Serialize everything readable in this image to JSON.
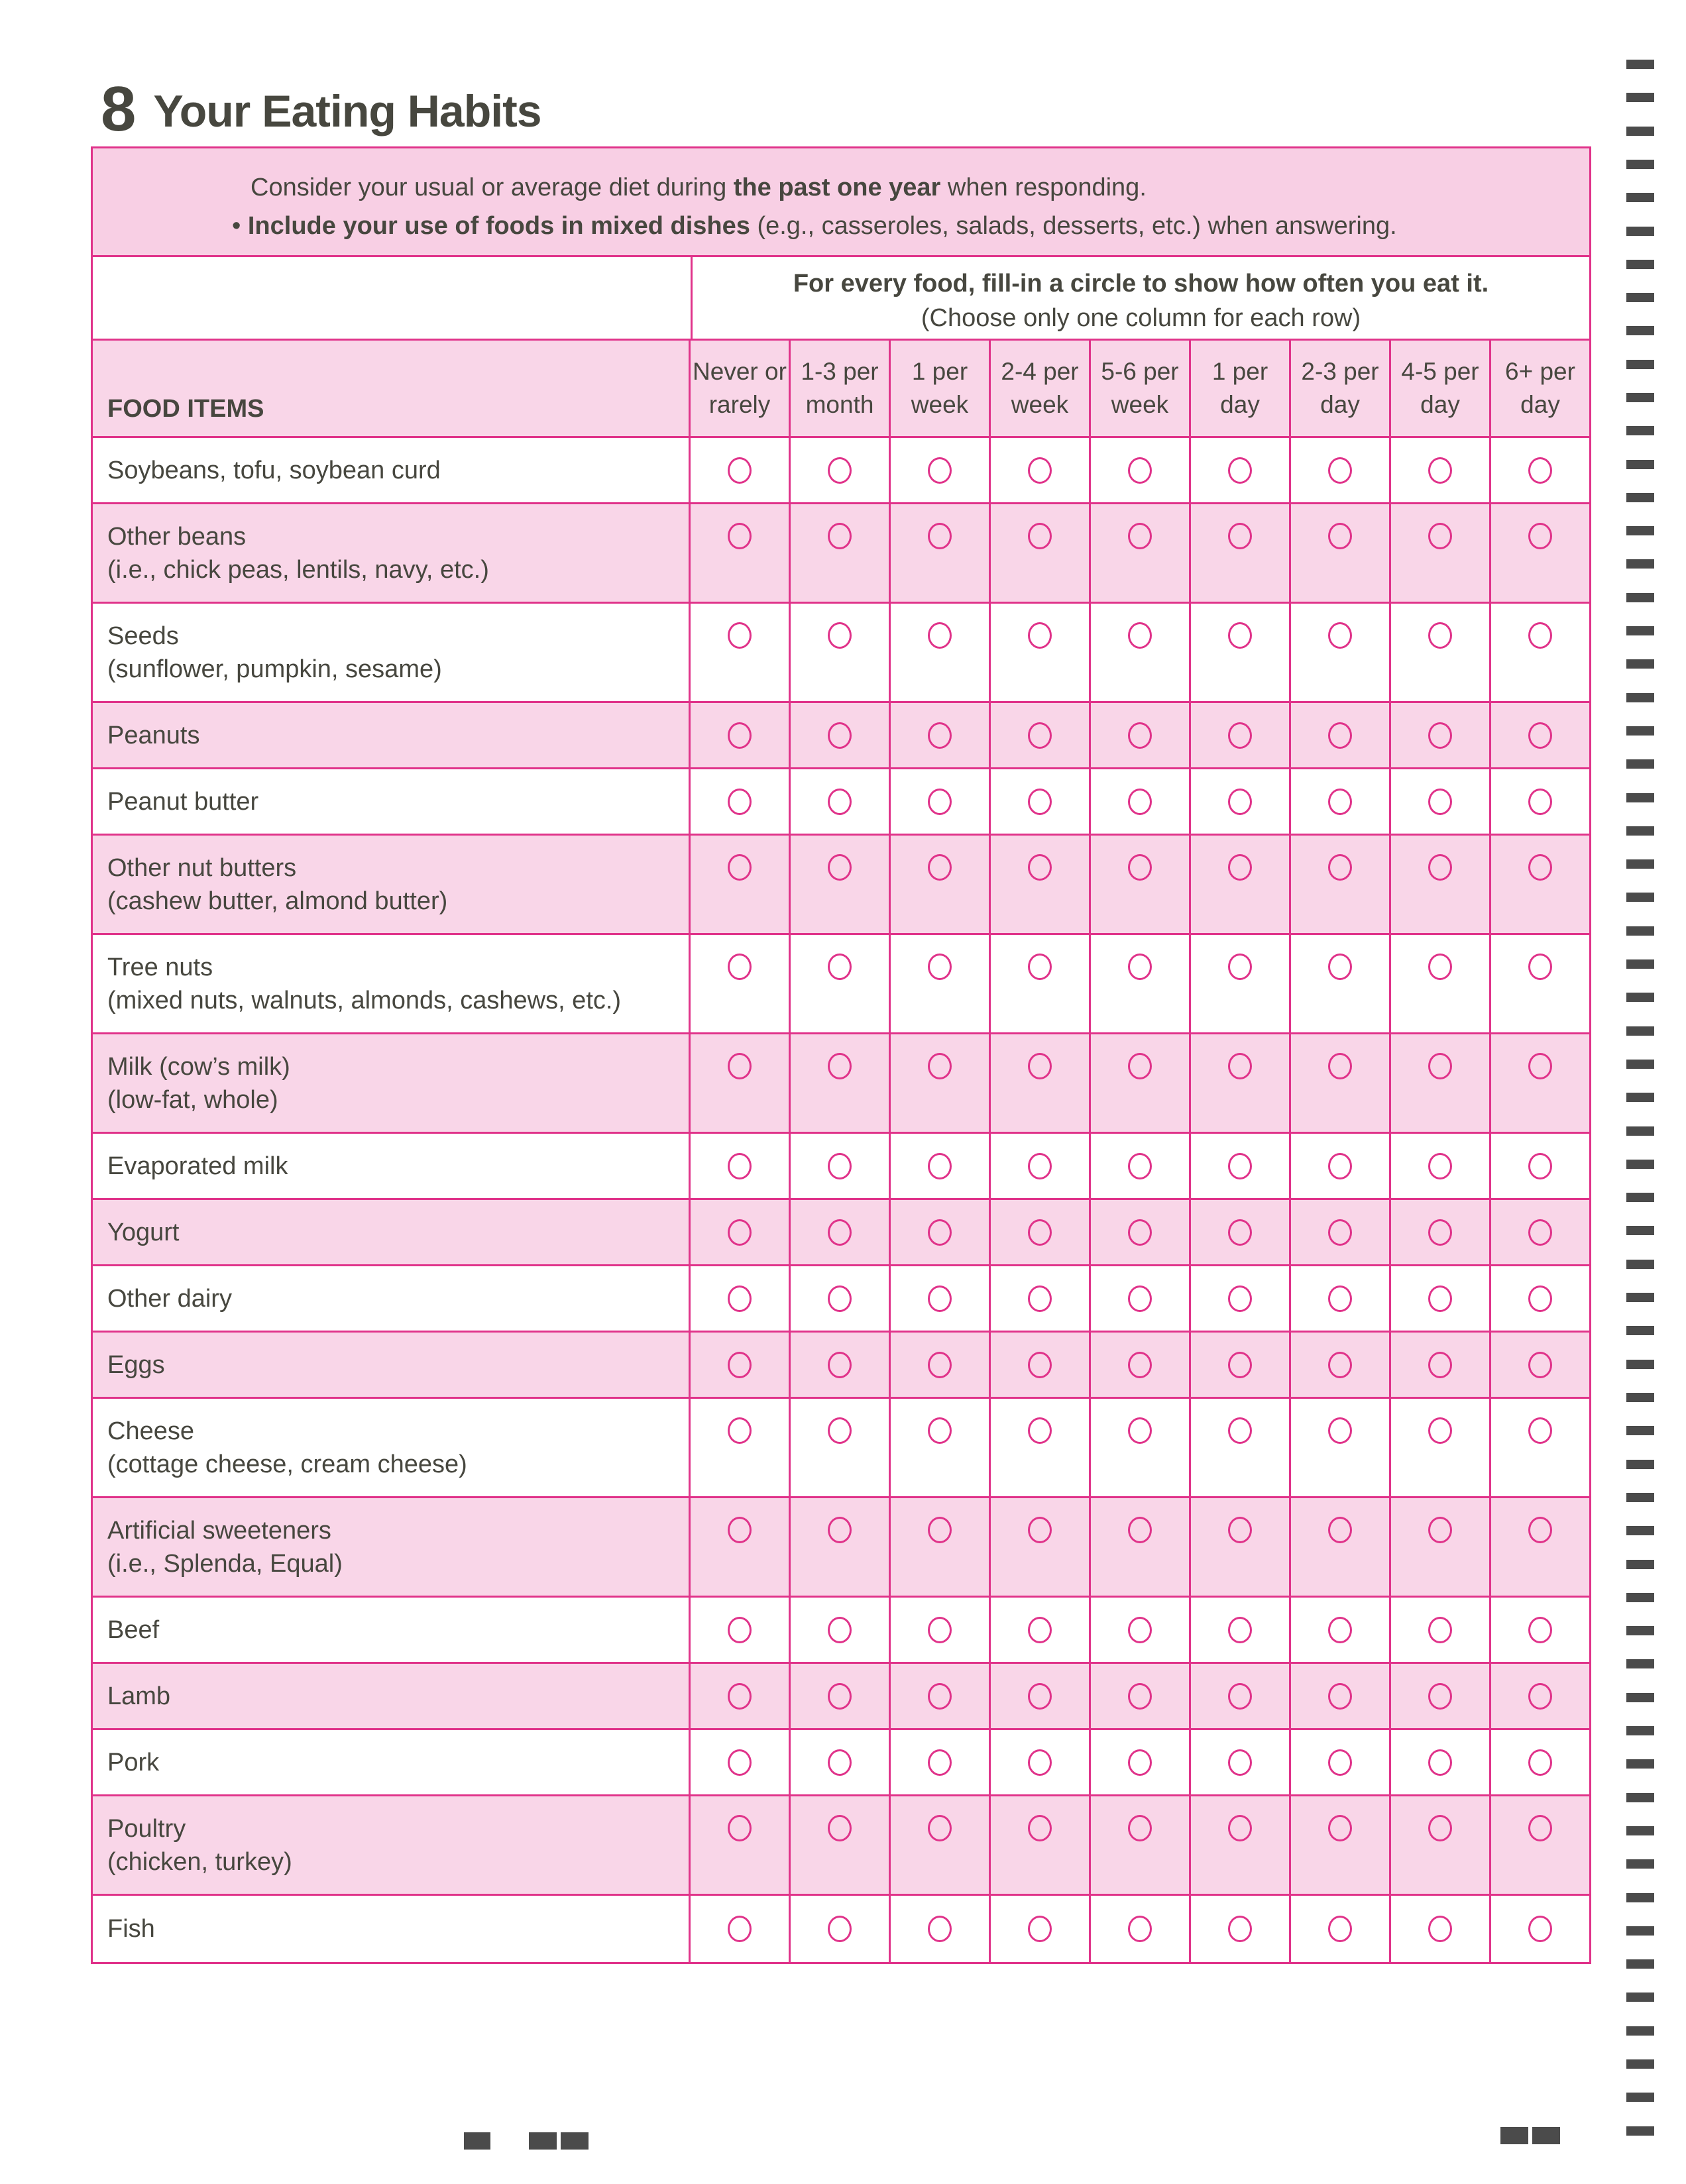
{
  "section": {
    "number": "8",
    "title": "Your Eating Habits"
  },
  "intro": {
    "line1_prefix": "Consider your usual or average diet during ",
    "line1_bold": "the past one year",
    "line1_suffix": " when responding.",
    "bullet": "•",
    "line2_bold": "Include your use of foods in mixed dishes",
    "line2_suffix": " (e.g., casseroles, salads, desserts, etc.) when answering."
  },
  "instructions": {
    "main": "For every food, fill-in a circle to show how often you eat it.",
    "sub": "(Choose only one column for each row)"
  },
  "table": {
    "food_header": "FOOD ITEMS",
    "columns": [
      [
        "Never or",
        "rarely"
      ],
      [
        "1-3 per",
        "month"
      ],
      [
        "1 per",
        "week"
      ],
      [
        "2-4 per",
        "week"
      ],
      [
        "5-6 per",
        "week"
      ],
      [
        "1 per",
        "day"
      ],
      [
        "2-3 per",
        "day"
      ],
      [
        "4-5 per",
        "day"
      ],
      [
        "6+ per",
        "day"
      ]
    ],
    "rows": [
      {
        "name": "Soybeans, tofu, soybean curd",
        "detail": ""
      },
      {
        "name": "Other beans",
        "detail": "(i.e., chick peas, lentils, navy, etc.)"
      },
      {
        "name": "Seeds",
        "detail": "(sunflower, pumpkin, sesame)"
      },
      {
        "name": "Peanuts",
        "detail": ""
      },
      {
        "name": "Peanut butter",
        "detail": ""
      },
      {
        "name": "Other nut butters",
        "detail": "(cashew butter, almond butter)"
      },
      {
        "name": "Tree nuts",
        "detail": "(mixed nuts, walnuts, almonds, cashews, etc.)"
      },
      {
        "name": "Milk (cow’s milk)",
        "detail": "(low-fat, whole)"
      },
      {
        "name": "Evaporated milk",
        "detail": ""
      },
      {
        "name": "Yogurt",
        "detail": ""
      },
      {
        "name": "Other dairy",
        "detail": ""
      },
      {
        "name": "Eggs",
        "detail": ""
      },
      {
        "name": "Cheese",
        "detail": "(cottage cheese, cream cheese)"
      },
      {
        "name": "Artificial sweeteners",
        "detail": "(i.e., Splenda, Equal)"
      },
      {
        "name": "Beef",
        "detail": ""
      },
      {
        "name": "Lamb",
        "detail": ""
      },
      {
        "name": "Pork",
        "detail": ""
      },
      {
        "name": "Poultry",
        "detail": "(chicken, turkey)"
      },
      {
        "name": "Fish",
        "detail": ""
      }
    ]
  },
  "colors": {
    "accent": "#e0338a",
    "shade": "#f9d6e8",
    "text": "#47473f"
  }
}
